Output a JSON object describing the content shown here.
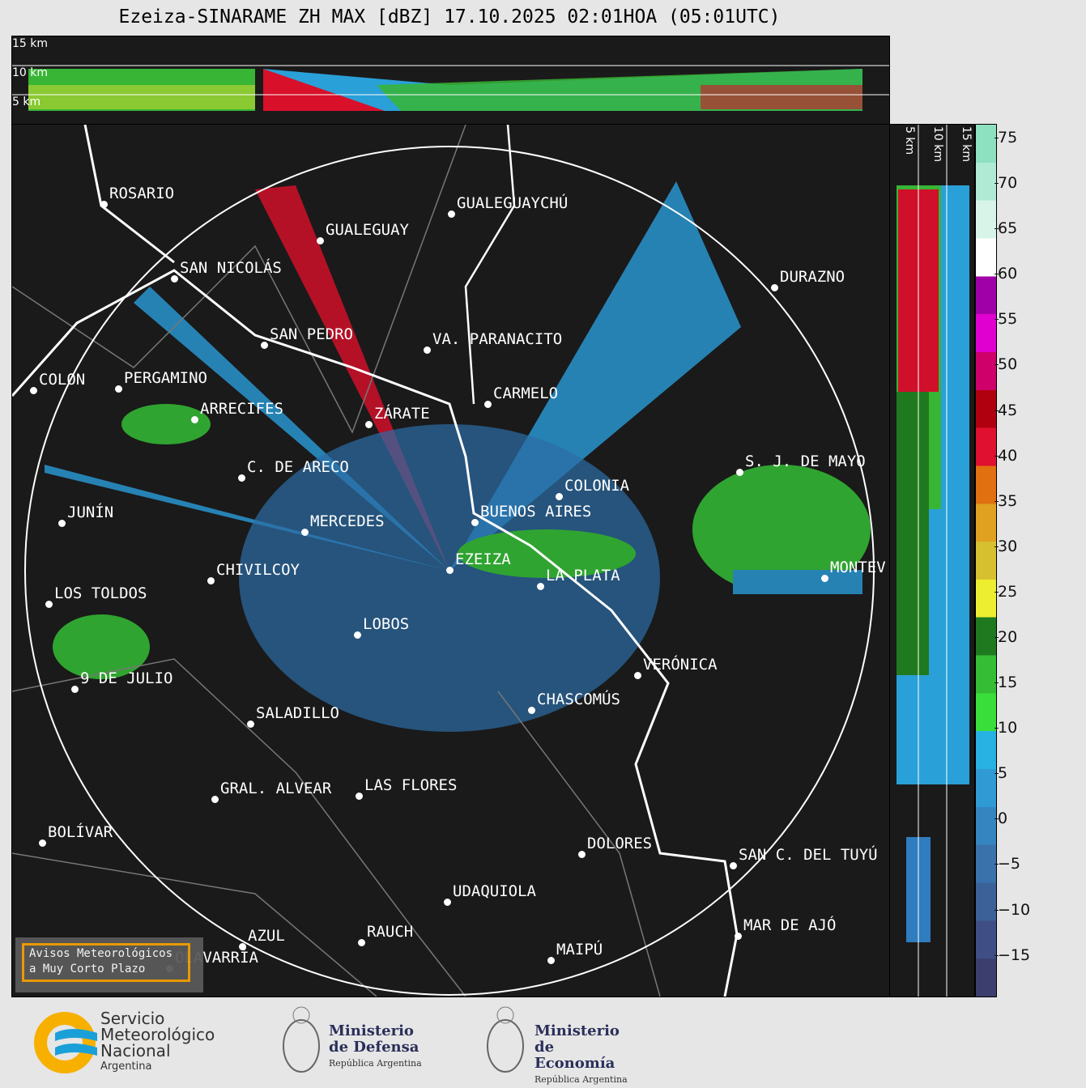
{
  "title": "Ezeiza-SINARAME ZH MAX [dBZ] 17.10.2025 02:01HOA (05:01UTC)",
  "top_panel": {
    "heights": [
      "15 km",
      "10 km",
      "5 km"
    ]
  },
  "side_panel": {
    "heights": [
      "5 km",
      "10 km",
      "15 km"
    ]
  },
  "colorbar": {
    "unit": "dBZ",
    "range": [
      -19.4,
      76.6
    ],
    "ticks": [
      "75",
      "70",
      "65",
      "60",
      "55",
      "50",
      "45",
      "40",
      "35",
      "30",
      "25",
      "20",
      "15",
      "10",
      "5",
      "0",
      "−5",
      "−10",
      "−15"
    ],
    "colors": [
      "#3c3f6e",
      "#3f4f85",
      "#3c6199",
      "#3a72ac",
      "#3585c0",
      "#2f9ad4",
      "#28b1e3",
      "#3ade3a",
      "#35bd35",
      "#1f7a1f",
      "#eeee30",
      "#d6c030",
      "#e0a020",
      "#e07010",
      "#e01030",
      "#b00010",
      "#d0006a",
      "#e000d0",
      "#a000a8",
      "#ffffff",
      "#d8f4e8",
      "#b0ead4",
      "#8de0c0"
    ]
  },
  "cities": [
    "ROSARIO",
    "GUALEGUAYCHÚ",
    "GUALEGUAY",
    "SAN NICOLÁS",
    "DURAZNO",
    "SAN PEDRO",
    "VA. PARANACITO",
    "COLON",
    "PERGAMINO",
    "CARMELO",
    "ARRECIFES",
    "ZÁRATE",
    "S. J. DE MAYO",
    "C. DE ARECO",
    "COLONIA",
    "JUNÍN",
    "BUENOS AIRES",
    "MERCEDES",
    "EZEIZA",
    "MONTEV",
    "CHIVILCOY",
    "LA PLATA",
    "LOS TOLDOS",
    "LOBOS",
    "VERÓNICA",
    "9 DE JULIO",
    "CHASCOMÚS",
    "SALADILLO",
    "GRAL. ALVEAR",
    "LAS FLORES",
    "BOLÍVAR",
    "DOLORES",
    "SAN C. DEL TUYÚ",
    "UDAQUIOLA",
    "MAR DE AJÓ",
    "AZUL",
    "RAUCH",
    "MAIPÚ",
    "OLAVARRÍA"
  ],
  "avisos_button": {
    "line1": "Avisos Meteorológicos",
    "line2": "a Muy Corto Plazo"
  },
  "logos": {
    "smn": {
      "l1": "Servicio",
      "l2": "Meteorológico",
      "l3": "Nacional",
      "l4": "Argentina"
    },
    "defensa": {
      "l1": "Ministerio",
      "l2": "de Defensa",
      "l3": "República Argentina"
    },
    "economia": {
      "l1": "Ministerio",
      "l2": "de Economía",
      "l3": "República Argentina"
    }
  }
}
